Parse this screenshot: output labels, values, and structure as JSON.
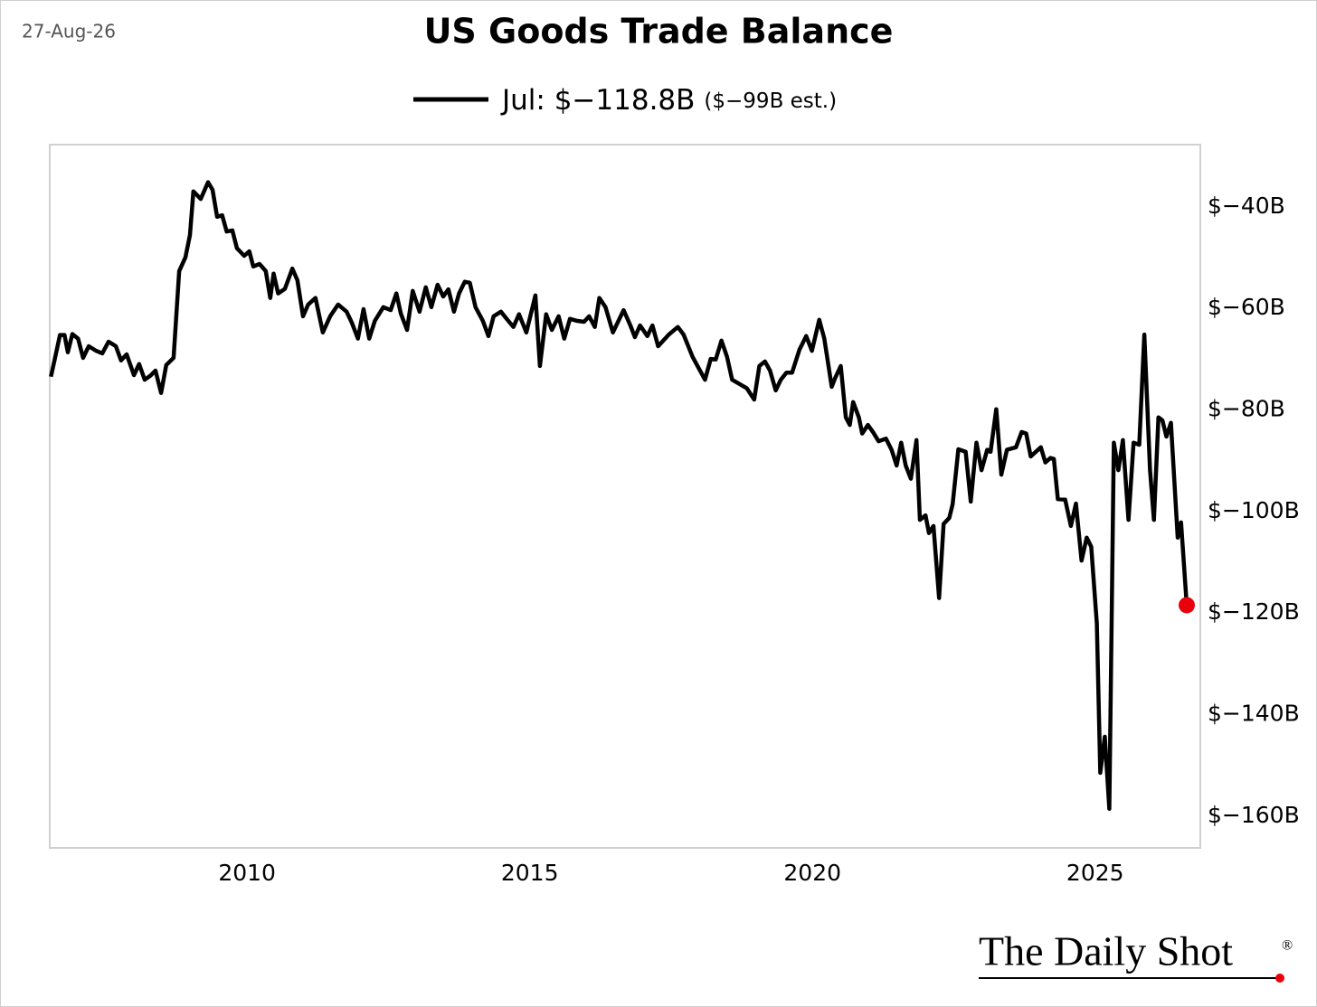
{
  "chart_data": {
    "type": "line",
    "title": "US Goods Trade Balance",
    "date_label": "27-Aug-26",
    "legend_note": "($−99B est.)",
    "source": "The Daily Shot",
    "source_mark": "®",
    "marker_color": "#e8000b",
    "xlim": [
      2006.51,
      2026.86
    ],
    "xticks": [
      2010,
      2015,
      2020,
      2025
    ],
    "ylim": [
      -166.6,
      -28.1
    ],
    "yticks": [
      {
        "value": -40,
        "label": "$−40B"
      },
      {
        "value": -60,
        "label": "$−60B"
      },
      {
        "value": -80,
        "label": "$−80B"
      },
      {
        "value": -100,
        "label": "$−100B"
      },
      {
        "value": -120,
        "label": "$−120B"
      },
      {
        "value": -140,
        "label": "$−140B"
      },
      {
        "value": -160,
        "label": "$−160B"
      }
    ],
    "grid": false,
    "x": [
      2006.53,
      2006.59,
      2006.69,
      2006.77,
      2006.83,
      2006.91,
      2007.01,
      2007.1,
      2007.2,
      2007.33,
      2007.44,
      2007.55,
      2007.68,
      2007.77,
      2007.87,
      2008.0,
      2008.09,
      2008.19,
      2008.29,
      2008.38,
      2008.48,
      2008.57,
      2008.7,
      2008.8,
      2008.91,
      2008.99,
      2009.05,
      2009.18,
      2009.31,
      2009.39,
      2009.47,
      2009.56,
      2009.64,
      2009.74,
      2009.82,
      2009.95,
      2010.04,
      2010.11,
      2010.22,
      2010.33,
      2010.41,
      2010.47,
      2010.55,
      2010.67,
      2010.8,
      2010.89,
      2010.99,
      2011.08,
      2011.21,
      2011.34,
      2011.47,
      2011.61,
      2011.76,
      2011.85,
      2011.96,
      2012.06,
      2012.16,
      2012.26,
      2012.41,
      2012.54,
      2012.64,
      2012.72,
      2012.83,
      2012.93,
      2013.05,
      2013.16,
      2013.26,
      2013.37,
      2013.47,
      2013.56,
      2013.66,
      2013.75,
      2013.85,
      2013.94,
      2014.04,
      2014.17,
      2014.27,
      2014.36,
      2014.49,
      2014.62,
      2014.71,
      2014.81,
      2014.94,
      2015.1,
      2015.18,
      2015.29,
      2015.39,
      2015.51,
      2015.61,
      2015.71,
      2015.83,
      2015.96,
      2016.05,
      2016.15,
      2016.23,
      2016.34,
      2016.47,
      2016.66,
      2016.78,
      2016.86,
      2016.95,
      2017.08,
      2017.17,
      2017.27,
      2017.46,
      2017.62,
      2017.72,
      2017.88,
      2018.1,
      2018.2,
      2018.29,
      2018.39,
      2018.49,
      2018.58,
      2018.84,
      2018.97,
      2019.06,
      2019.16,
      2019.25,
      2019.35,
      2019.44,
      2019.54,
      2019.64,
      2019.77,
      2019.89,
      2019.99,
      2020.12,
      2020.21,
      2020.34,
      2020.4,
      2020.5,
      2020.59,
      2020.66,
      2020.72,
      2020.82,
      2020.88,
      2020.98,
      2021.07,
      2021.17,
      2021.3,
      2021.4,
      2021.49,
      2021.57,
      2021.65,
      2021.74,
      2021.84,
      2021.9,
      2022.0,
      2022.06,
      2022.14,
      2022.24,
      2022.32,
      2022.42,
      2022.48,
      2022.58,
      2022.71,
      2022.8,
      2022.9,
      2022.99,
      2023.09,
      2023.15,
      2023.25,
      2023.34,
      2023.44,
      2023.6,
      2023.7,
      2023.78,
      2023.86,
      2023.95,
      2024.04,
      2024.12,
      2024.21,
      2024.27,
      2024.34,
      2024.47,
      2024.57,
      2024.66,
      2024.76,
      2024.85,
      2024.93,
      2025.03,
      2025.09,
      2025.17,
      2025.25,
      2025.33,
      2025.41,
      2025.49,
      2025.59,
      2025.68,
      2025.78,
      2025.87,
      2025.97,
      2026.04,
      2026.12,
      2026.19,
      2026.26,
      2026.34,
      2026.46,
      2026.52,
      2026.62
    ],
    "series": [
      {
        "name": "Jul: $−118.8B",
        "color": "#000000",
        "values": [
          -73.8,
          -70.8,
          -65.6,
          -65.6,
          -69.0,
          -65.4,
          -66.3,
          -70.1,
          -67.8,
          -68.7,
          -69.2,
          -66.9,
          -67.8,
          -70.6,
          -69.4,
          -73.5,
          -71.3,
          -74.4,
          -73.6,
          -72.6,
          -77.0,
          -71.5,
          -70.1,
          -53.0,
          -50.3,
          -45.9,
          -37.3,
          -38.8,
          -35.5,
          -37.0,
          -42.3,
          -42.0,
          -45.2,
          -45.0,
          -48.5,
          -50.0,
          -49.1,
          -52.1,
          -51.6,
          -53.0,
          -58.3,
          -53.5,
          -57.4,
          -56.5,
          -52.5,
          -54.8,
          -61.9,
          -59.6,
          -58.3,
          -65.1,
          -61.9,
          -59.6,
          -61.0,
          -63.1,
          -66.3,
          -60.5,
          -66.3,
          -62.8,
          -60.1,
          -60.7,
          -57.4,
          -61.4,
          -64.6,
          -56.9,
          -61.0,
          -56.2,
          -60.1,
          -55.7,
          -58.0,
          -56.6,
          -61.0,
          -57.4,
          -55.1,
          -55.3,
          -60.1,
          -62.8,
          -65.8,
          -61.9,
          -61.0,
          -62.8,
          -64.0,
          -61.5,
          -65.1,
          -57.8,
          -71.7,
          -61.5,
          -64.6,
          -61.9,
          -66.3,
          -62.4,
          -62.8,
          -63.0,
          -61.9,
          -64.0,
          -58.3,
          -60.1,
          -65.1,
          -60.7,
          -63.7,
          -66.0,
          -63.7,
          -65.8,
          -63.7,
          -67.8,
          -65.5,
          -64.0,
          -65.5,
          -69.9,
          -74.4,
          -70.3,
          -70.4,
          -66.7,
          -69.9,
          -74.4,
          -76.1,
          -78.3,
          -71.7,
          -70.8,
          -72.6,
          -76.5,
          -74.4,
          -73.0,
          -73.0,
          -68.5,
          -65.8,
          -68.7,
          -62.6,
          -66.3,
          -75.8,
          -74.1,
          -71.7,
          -81.8,
          -83.3,
          -78.8,
          -81.8,
          -85.0,
          -83.3,
          -84.7,
          -86.5,
          -86.0,
          -88.2,
          -91.3,
          -86.8,
          -91.3,
          -93.9,
          -86.3,
          -102.0,
          -101.1,
          -104.6,
          -103.2,
          -117.4,
          -102.8,
          -101.6,
          -98.9,
          -88.1,
          -88.6,
          -98.4,
          -86.8,
          -92.2,
          -88.2,
          -88.6,
          -80.2,
          -93.1,
          -88.2,
          -87.7,
          -84.7,
          -85.0,
          -89.5,
          -88.6,
          -87.7,
          -90.7,
          -89.8,
          -90.0,
          -97.9,
          -98.0,
          -103.2,
          -98.8,
          -110.0,
          -105.5,
          -107.3,
          -122.4,
          -151.8,
          -144.7,
          -158.9,
          -86.8,
          -92.2,
          -86.3,
          -102.0,
          -86.8,
          -87.2,
          -65.5,
          -92.2,
          -102.0,
          -81.8,
          -82.4,
          -85.6,
          -82.9,
          -105.5,
          -102.5,
          -118.8
        ]
      }
    ]
  }
}
